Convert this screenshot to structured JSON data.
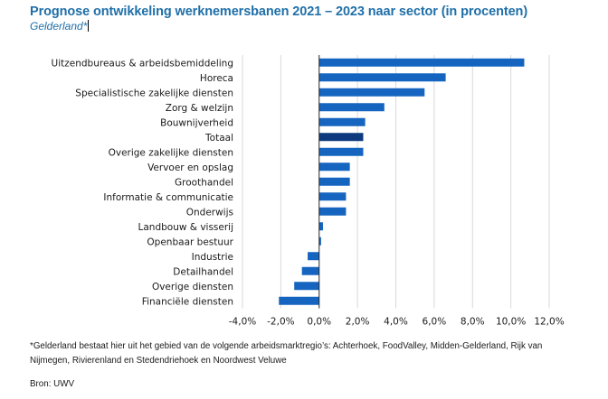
{
  "header": {
    "title": "Prognose ontwikkeling werknemersbanen 2021 – 2023 naar sector (in procenten)",
    "subtitle": "Gelderland*"
  },
  "chart_data": {
    "type": "bar",
    "orientation": "horizontal",
    "title": "Prognose ontwikkeling werknemersbanen 2021 – 2023 naar sector (in procenten)",
    "subtitle": "Gelderland*",
    "xlabel": "",
    "ylabel": "",
    "categories": [
      "Uitzendbureaus & arbeidsbemiddeling",
      "Horeca",
      "Specialistische zakelijke diensten",
      "Zorg & welzijn",
      "Bouwnijverheid",
      "Totaal",
      "Overige zakelijke diensten",
      "Vervoer en opslag",
      "Groothandel",
      "Informatie & communicatie",
      "Onderwijs",
      "Landbouw & visserij",
      "Openbaar bestuur",
      "Industrie",
      "Detailhandel",
      "Overige diensten",
      "Financiële diensten"
    ],
    "values": [
      10.7,
      6.6,
      5.5,
      3.4,
      2.4,
      2.3,
      2.3,
      1.6,
      1.6,
      1.4,
      1.4,
      0.2,
      0.1,
      -0.6,
      -0.9,
      -1.3,
      -2.1
    ],
    "highlight_category": "Totaal",
    "xlim": [
      -4,
      12
    ],
    "xticks": [
      -4,
      -2,
      0,
      2,
      4,
      6,
      8,
      10,
      12
    ],
    "xtick_labels": [
      "-4,0%",
      "-2,0%",
      "0,0%",
      "2,0%",
      "4,0%",
      "6,0%",
      "8,0%",
      "10,0%",
      "12,0%"
    ],
    "grid": true,
    "legend": "none",
    "colors": {
      "bar": "#1565C0",
      "highlight": "#0D3A7E",
      "grid": "#D9D9D9",
      "axis": "#262626"
    }
  },
  "footer": {
    "note": "*Gelderland bestaat hier uit het gebied van de volgende arbeidsmarktregio’s: Achterhoek, FoodValley, Midden-Gelderland, Rijk van Nijmegen, Rivierenland en Stedendriehoek en Noordwest Veluwe",
    "source": "Bron: UWV"
  }
}
